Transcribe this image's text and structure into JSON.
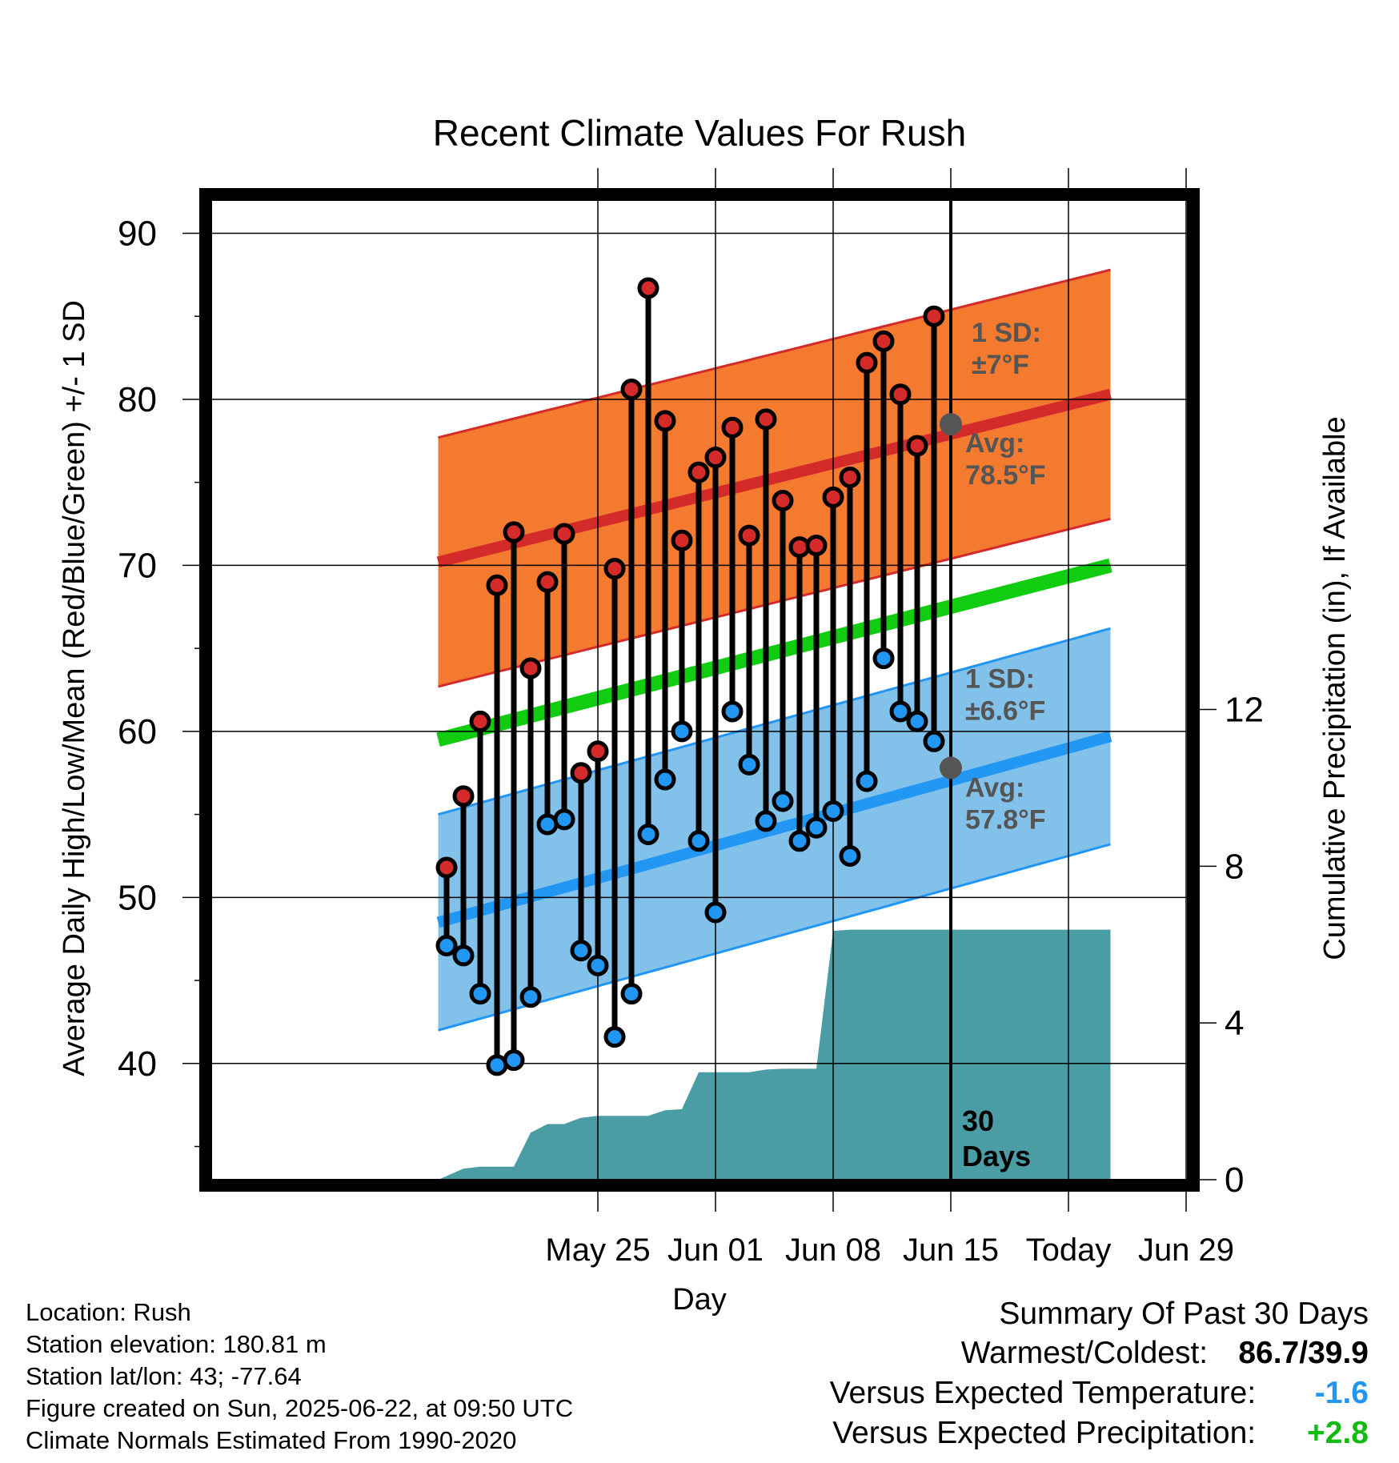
{
  "chart_data": {
    "type": "line",
    "title": "Recent Climate Values For Rush",
    "xlabel": "Day",
    "ylabel": "Average Daily High/Low/Mean (Red/Blue/Green) +/- 1 SD",
    "y2label": "Cumulative Precipitation (in), If Available",
    "x_tick_labels": [
      "May 25",
      "Jun 01",
      "Jun 08",
      "Jun 15",
      "Today",
      "Jun 29"
    ],
    "y_ticks": [
      40,
      50,
      60,
      70,
      80,
      90
    ],
    "y2_ticks": [
      0,
      4,
      8,
      12
    ],
    "ylim": [
      33,
      92
    ],
    "y2lim": [
      0,
      25
    ],
    "grid": true,
    "today_label": [
      "30",
      "Days"
    ],
    "normal_high": {
      "start": 70.2,
      "end": 80.3,
      "sd_label": [
        "1 SD:",
        "±7°F"
      ],
      "avg_label": [
        "Avg:",
        "78.5°F"
      ],
      "color": "#d42a2a",
      "band_color": "#f47a30"
    },
    "normal_low": {
      "start": 48.5,
      "end": 59.7,
      "sd_label": [
        "1 SD:",
        "±6.6°F"
      ],
      "avg_label": [
        "Avg:",
        "57.8°F"
      ],
      "color": "#2196f3",
      "band_color": "#82c1ea"
    },
    "normal_mean": {
      "start": 59.5,
      "end": 70.0,
      "color": "#11cc11"
    },
    "daily_high": [
      51.8,
      56.1,
      60.6,
      68.8,
      72.0,
      63.8,
      69.0,
      71.9,
      57.5,
      58.8,
      69.8,
      80.6,
      86.7,
      78.7,
      71.5,
      75.6,
      76.5,
      78.3,
      71.8,
      78.8,
      73.9,
      71.1,
      71.2,
      74.1,
      75.3,
      82.2,
      83.5,
      80.3,
      77.2,
      85.0
    ],
    "daily_low": [
      47.1,
      46.5,
      44.2,
      39.9,
      40.2,
      44.0,
      54.4,
      54.7,
      46.8,
      45.9,
      41.6,
      44.2,
      53.8,
      57.1,
      60.0,
      53.4,
      49.1,
      61.2,
      58.0,
      54.6,
      55.8,
      53.4,
      54.2,
      55.2,
      52.5,
      57.0,
      64.4,
      61.2,
      60.6,
      59.4
    ],
    "cumulative_precip": {
      "x": [
        -30.5,
        -29.0,
        -28.0,
        -27.0,
        -26.0,
        -25.0,
        -24.0,
        -23.0,
        -22.0,
        -21.0,
        -20.0,
        -19.0,
        -18.0,
        -17.0,
        -16.0,
        -15.0,
        -14.0,
        -13.0,
        -12.0,
        -11.0,
        -10.0,
        -9.0,
        -8.0,
        -7.0,
        -6.0,
        -5.0,
        -4.0,
        -3.0,
        -2.0,
        -1.0,
        0.0,
        9.5
      ],
      "values": [
        0.0,
        0.28,
        0.33,
        0.33,
        0.33,
        1.2,
        1.42,
        1.42,
        1.58,
        1.63,
        1.63,
        1.63,
        1.63,
        1.77,
        1.8,
        2.74,
        2.74,
        2.74,
        2.74,
        2.81,
        2.83,
        2.83,
        2.83,
        6.35,
        6.38,
        6.38,
        6.38,
        6.38,
        6.38,
        6.38,
        6.38,
        6.38
      ],
      "color": "#4a9ca5"
    }
  },
  "footer": {
    "location": "Location: Rush",
    "elevation": "Station elevation: 180.81 m",
    "latlon": "Station lat/lon: 43; -77.64",
    "created": "Figure created on Sun, 2025-06-22, at 09:50 UTC",
    "normals": "Climate Normals Estimated From 1990-2020"
  },
  "summary": {
    "heading": "Summary Of Past 30 Days",
    "warm_cold_label": "Warmest/Coldest:",
    "warm_cold_value": "86.7/39.9",
    "temp_label": "Versus Expected Temperature:",
    "temp_value": "-1.6",
    "temp_color": "#2196f3",
    "precip_label": "Versus Expected Precipitation:",
    "precip_value": "+2.8",
    "precip_color": "#11bb11"
  }
}
